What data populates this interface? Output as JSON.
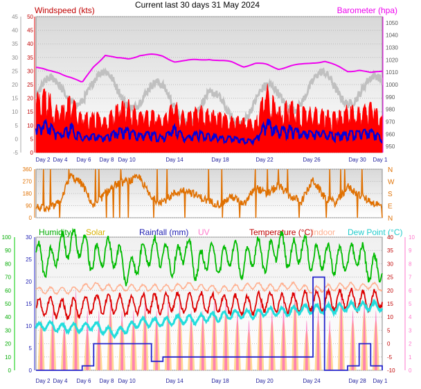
{
  "title": "Current last 30 days 31 May 2024",
  "x_labels": [
    "Day 2",
    "Day 4",
    "Day 6",
    "Day 8",
    "Day 10",
    "Day 14",
    "Day 18",
    "Day 22",
    "Day 26",
    "Day 30",
    "Day 1"
  ],
  "x_labels_bottom": [
    "Day 2",
    "Day 4",
    "Day 6",
    "Day 8",
    "Day 10",
    "Day 14",
    "Day 18",
    "Day 20",
    "Day 24",
    "Day 28",
    "Day 1"
  ],
  "colors": {
    "wind_gust": "#ff0000",
    "wind_avg": "#0000dd",
    "baro": "#ee00ee",
    "baro_bg": "#c0c0c0",
    "dir": "#e07000",
    "humidity": "#00bb00",
    "solar": "#ffd080",
    "rain": "#2222cc",
    "uv": "#ff66bb",
    "temp": "#dd0000",
    "indoor": "#ffb090",
    "dew": "#22dddd"
  },
  "chart_data": [
    {
      "type": "area",
      "panel": "wind-baro",
      "legend": {
        "left": "Windspeed (kts)",
        "right": "Barometer (hpa)"
      },
      "ylabel_left": "Windspeed (kts)",
      "ylabel_right": "Barometer (hpa)",
      "ylim_left": [
        -5,
        45
      ],
      "ylim_left_inner": [
        0,
        50
      ],
      "ylim_right": [
        940,
        1050
      ],
      "ticks_left_outer": [
        45,
        40,
        35,
        30,
        25,
        20,
        15,
        10,
        5,
        0,
        -5
      ],
      "ticks_left_inner": [
        50,
        45,
        40,
        35,
        30,
        25,
        20,
        15,
        10,
        5,
        0
      ],
      "ticks_right": [
        1050,
        1040,
        1030,
        1020,
        1010,
        1000,
        990,
        980,
        970,
        960,
        950
      ],
      "series": [
        {
          "name": "Barometer (hpa)",
          "x": [
            0,
            1,
            2,
            3,
            4,
            5,
            6,
            7,
            8,
            9,
            10,
            11,
            12,
            13,
            14,
            15,
            16,
            17,
            18,
            19,
            20,
            21,
            22,
            23,
            24,
            25,
            26,
            27,
            28,
            29,
            30
          ],
          "values": [
            1014,
            1011,
            1010,
            1006,
            1001,
            1015,
            1024,
            1021,
            1021,
            1024,
            1024,
            1023,
            1019,
            1019,
            1020,
            1021,
            1019,
            1018,
            1015,
            1017,
            1016,
            1013,
            1015,
            1016,
            1018,
            1019,
            1015,
            1011,
            1012,
            1009,
            1011
          ]
        }
      ],
      "gust_envelope": [
        18,
        20,
        12,
        18,
        10,
        12,
        9,
        14,
        16,
        11,
        12,
        9,
        16,
        10,
        14,
        12,
        11,
        10,
        9,
        8,
        22,
        13,
        16,
        13,
        13,
        12,
        11,
        14,
        13,
        15,
        10
      ],
      "avg_envelope": [
        8,
        10,
        5,
        9,
        4,
        5,
        4,
        7,
        7,
        5,
        6,
        4,
        8,
        4,
        6,
        5,
        4,
        4,
        3,
        3,
        11,
        7,
        8,
        6,
        6,
        6,
        5,
        6,
        6,
        7,
        4
      ]
    },
    {
      "type": "line",
      "panel": "wind-direction",
      "yticks": [
        360,
        270,
        180,
        90,
        0
      ],
      "right_labels": [
        "N",
        "W",
        "S",
        "E",
        "N"
      ],
      "ylim": [
        0,
        360
      ],
      "values": [
        80,
        60,
        110,
        310,
        250,
        80,
        180,
        250,
        270,
        300,
        140,
        120,
        180,
        210,
        160,
        120,
        100,
        160,
        90,
        230,
        170,
        240,
        160,
        120,
        280,
        150,
        110,
        230,
        170,
        120,
        80
      ]
    },
    {
      "type": "line",
      "panel": "temp-hum",
      "legend": [
        "Humidity",
        "Solar",
        "Rainfall (mm)",
        "UV",
        "Temperature (°C)",
        "Indoor",
        "Dew Point (°C)"
      ],
      "ticks_humidity": [
        100,
        90,
        80,
        70,
        60,
        50,
        40,
        30,
        20,
        10,
        0
      ],
      "ticks_rain": [
        30,
        25,
        20,
        15,
        10,
        5,
        0
      ],
      "ticks_temp": [
        40,
        35,
        30,
        25,
        20,
        15,
        10,
        5,
        0,
        -5,
        -10
      ],
      "ticks_uv": [
        10,
        9,
        8,
        7,
        6,
        5,
        4,
        3,
        2,
        1,
        0
      ],
      "ylim_temp": [
        -10,
        40
      ],
      "ylim_humidity": [
        0,
        100
      ],
      "ylim_rain": [
        0,
        30
      ],
      "humidity": [
        88,
        78,
        92,
        96,
        95,
        82,
        90,
        87,
        72,
        85,
        90,
        88,
        80,
        93,
        76,
        88,
        80,
        90,
        77,
        92,
        82,
        96,
        85,
        93,
        84,
        86,
        82,
        84,
        88,
        76,
        78
      ],
      "indoor": [
        20,
        20,
        20,
        20,
        21,
        22,
        21,
        21,
        21,
        21,
        21,
        21,
        21,
        22,
        21,
        21,
        20,
        21,
        21,
        22,
        21,
        21,
        22,
        21,
        20,
        21,
        21,
        22,
        21,
        22,
        21
      ],
      "temp": [
        13,
        14,
        13,
        13,
        14,
        15,
        15,
        15,
        14,
        15,
        15,
        15,
        16,
        15,
        16,
        15,
        15,
        15,
        14,
        15,
        16,
        15,
        15,
        16,
        16,
        16,
        16,
        17,
        16,
        16,
        17
      ],
      "dew": [
        6,
        7,
        6,
        6,
        6,
        7,
        5,
        4,
        6,
        8,
        8,
        8,
        9,
        9,
        9,
        10,
        10,
        11,
        11,
        11,
        12,
        12,
        12,
        13,
        13,
        13,
        13,
        14,
        14,
        14,
        14
      ],
      "rain_cum": [
        0,
        0,
        0,
        0,
        1,
        6,
        6,
        6,
        6,
        6,
        2,
        3,
        3,
        3,
        3,
        3,
        3,
        3,
        3,
        3,
        3,
        3,
        3,
        3,
        21,
        0,
        0,
        1,
        6,
        1,
        0
      ],
      "solar_peak": [
        5,
        5,
        4,
        7,
        4,
        4,
        6,
        5,
        5,
        6,
        5,
        6,
        6,
        5,
        5,
        6,
        6,
        5,
        4,
        6,
        5,
        5,
        7,
        4,
        5,
        4,
        7,
        5,
        6,
        5,
        6
      ],
      "uv_peak": [
        5,
        6,
        5,
        8,
        6,
        6,
        7,
        6,
        6,
        7,
        6,
        7,
        7,
        6,
        6,
        7,
        7,
        6,
        5,
        7,
        6,
        7,
        8,
        5,
        6,
        5,
        8,
        6,
        7,
        6,
        7
      ]
    }
  ]
}
